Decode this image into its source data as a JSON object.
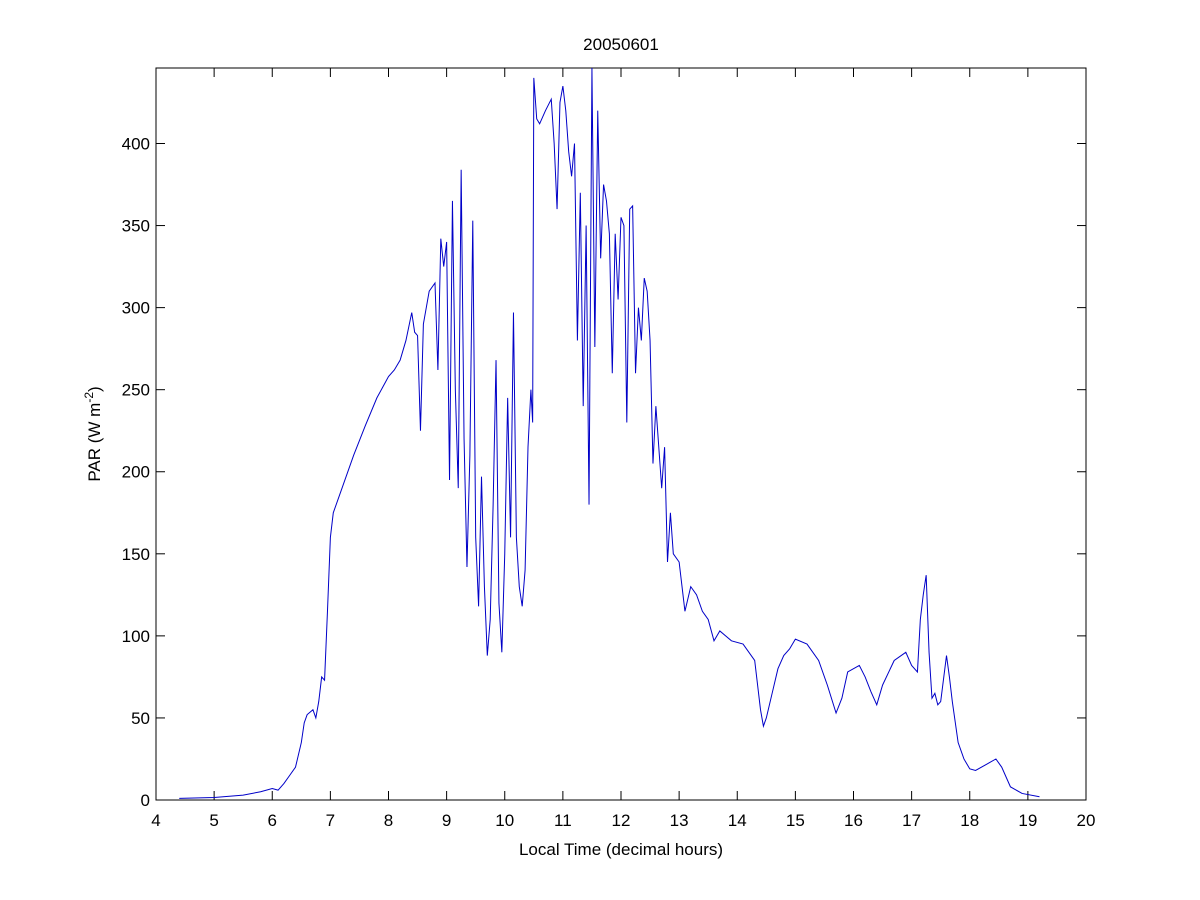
{
  "chart_data": {
    "type": "line",
    "title": "20050601",
    "xlabel": "Local Time (decimal hours)",
    "ylabel_parts": [
      "PAR (W m",
      "-2",
      ")"
    ],
    "xlim": [
      4,
      20
    ],
    "xticks": [
      4,
      5,
      6,
      7,
      8,
      9,
      10,
      11,
      12,
      13,
      14,
      15,
      16,
      17,
      18,
      19,
      20
    ],
    "ylim": [
      0,
      446
    ],
    "yticks": [
      0,
      50,
      100,
      150,
      200,
      250,
      300,
      350,
      400
    ],
    "box": true,
    "series": [
      {
        "color": "#0000c8",
        "x": [
          4.4,
          5.0,
          5.5,
          5.8,
          6.0,
          6.1,
          6.2,
          6.3,
          6.4,
          6.5,
          6.55,
          6.6,
          6.7,
          6.75,
          6.8,
          6.85,
          6.9,
          6.95,
          7.0,
          7.05,
          7.2,
          7.4,
          7.6,
          7.8,
          8.0,
          8.1,
          8.2,
          8.3,
          8.4,
          8.45,
          8.5,
          8.55,
          8.6,
          8.7,
          8.8,
          8.85,
          8.9,
          8.95,
          9.0,
          9.05,
          9.1,
          9.15,
          9.2,
          9.25,
          9.3,
          9.35,
          9.4,
          9.45,
          9.5,
          9.55,
          9.6,
          9.65,
          9.7,
          9.75,
          9.8,
          9.85,
          9.9,
          9.95,
          10.0,
          10.05,
          10.1,
          10.15,
          10.2,
          10.25,
          10.3,
          10.35,
          10.4,
          10.45,
          10.48,
          10.5,
          10.55,
          10.6,
          10.7,
          10.8,
          10.85,
          10.9,
          10.95,
          11.0,
          11.05,
          11.1,
          11.15,
          11.2,
          11.25,
          11.3,
          11.35,
          11.4,
          11.45,
          11.5,
          11.55,
          11.6,
          11.65,
          11.7,
          11.75,
          11.8,
          11.85,
          11.9,
          11.95,
          12.0,
          12.05,
          12.1,
          12.15,
          12.2,
          12.25,
          12.3,
          12.35,
          12.4,
          12.45,
          12.5,
          12.55,
          12.6,
          12.7,
          12.75,
          12.8,
          12.85,
          12.9,
          13.0,
          13.1,
          13.2,
          13.3,
          13.4,
          13.5,
          13.6,
          13.7,
          13.9,
          14.1,
          14.3,
          14.4,
          14.45,
          14.5,
          14.6,
          14.7,
          14.8,
          14.9,
          15.0,
          15.2,
          15.4,
          15.55,
          15.7,
          15.8,
          15.9,
          16.1,
          16.2,
          16.3,
          16.4,
          16.5,
          16.7,
          16.9,
          17.0,
          17.1,
          17.15,
          17.2,
          17.25,
          17.3,
          17.35,
          17.4,
          17.45,
          17.5,
          17.6,
          17.65,
          17.7,
          17.8,
          17.9,
          18.0,
          18.1,
          18.3,
          18.45,
          18.55,
          18.7,
          18.9,
          19.2
        ],
        "values": [
          1,
          1.5,
          3,
          5,
          7,
          6,
          10,
          15,
          20,
          35,
          47,
          52,
          55,
          50,
          60,
          75,
          73,
          115,
          160,
          175,
          190,
          210,
          228,
          245,
          258,
          262,
          268,
          280,
          297,
          285,
          283,
          225,
          290,
          310,
          315,
          262,
          342,
          325,
          340,
          195,
          365,
          250,
          190,
          384,
          220,
          142,
          210,
          353,
          160,
          118,
          197,
          130,
          88,
          110,
          180,
          268,
          120,
          90,
          150,
          245,
          160,
          297,
          160,
          130,
          118,
          140,
          215,
          250,
          230,
          440,
          415,
          412,
          420,
          427,
          400,
          360,
          425,
          435,
          420,
          395,
          380,
          400,
          280,
          370,
          240,
          350,
          180,
          446,
          276,
          420,
          330,
          375,
          365,
          345,
          260,
          345,
          305,
          355,
          350,
          230,
          360,
          362,
          260,
          300,
          280,
          318,
          310,
          280,
          205,
          240,
          190,
          215,
          145,
          175,
          150,
          145,
          115,
          130,
          125,
          115,
          110,
          97,
          103,
          97,
          95,
          85,
          55,
          45,
          50,
          65,
          80,
          88,
          92,
          98,
          95,
          85,
          70,
          53,
          62,
          78,
          82,
          75,
          66,
          58,
          70,
          85,
          90,
          82,
          78,
          110,
          125,
          137,
          90,
          62,
          65,
          58,
          60,
          88,
          75,
          60,
          35,
          25,
          19,
          18,
          22,
          25,
          20,
          8,
          4,
          2
        ]
      }
    ]
  }
}
